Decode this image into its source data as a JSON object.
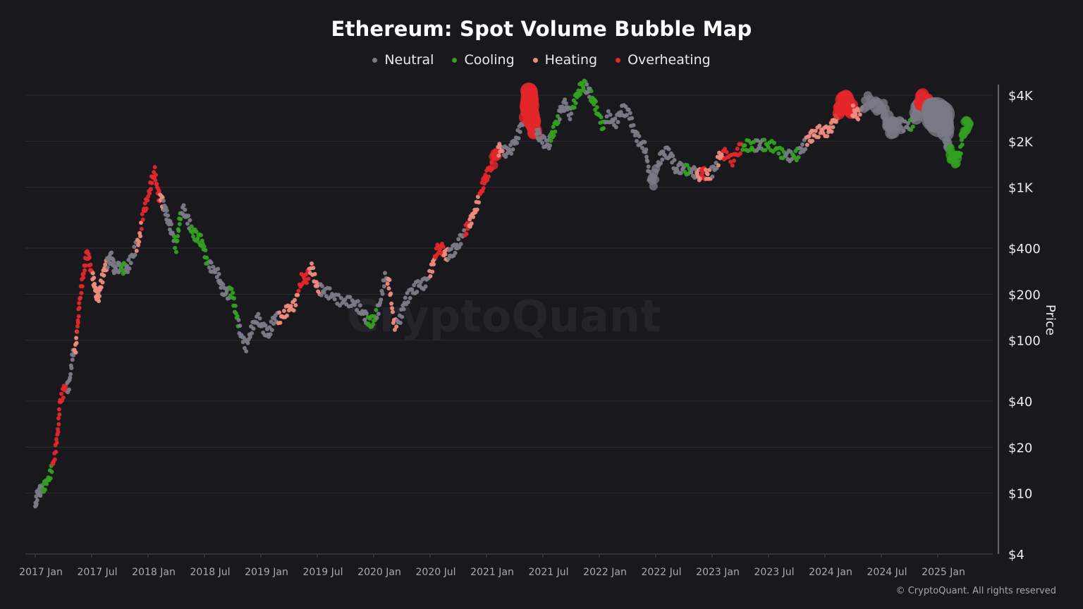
{
  "chart_data": {
    "type": "scatter",
    "title": "Ethereum: Spot Volume Bubble Map",
    "ylabel": "Price",
    "xlabel": "",
    "yscale": "log",
    "ylim": [
      4,
      6000
    ],
    "xlim": [
      2016.9,
      2025.55
    ],
    "grid": true,
    "legend_position": "top-center",
    "watermark": "CryptoQuant",
    "copyright": "© CryptoQuant. All rights reserved",
    "x_ticks": [
      {
        "label": "2017 Jan",
        "value": 2017.0
      },
      {
        "label": "2017 Jul",
        "value": 2017.5
      },
      {
        "label": "2018 Jan",
        "value": 2018.0
      },
      {
        "label": "2018 Jul",
        "value": 2018.5
      },
      {
        "label": "2019 Jan",
        "value": 2019.0
      },
      {
        "label": "2019 Jul",
        "value": 2019.5
      },
      {
        "label": "2020 Jan",
        "value": 2020.0
      },
      {
        "label": "2020 Jul",
        "value": 2020.5
      },
      {
        "label": "2021 Jan",
        "value": 2021.0
      },
      {
        "label": "2021 Jul",
        "value": 2021.5
      },
      {
        "label": "2022 Jan",
        "value": 2022.0
      },
      {
        "label": "2022 Jul",
        "value": 2022.5
      },
      {
        "label": "2023 Jan",
        "value": 2023.0
      },
      {
        "label": "2023 Jul",
        "value": 2023.5
      },
      {
        "label": "2024 Jan",
        "value": 2024.0
      },
      {
        "label": "2024 Jul",
        "value": 2024.5
      },
      {
        "label": "2025 Jan",
        "value": 2025.0
      }
    ],
    "y_ticks": [
      {
        "label": "$4K",
        "value": 4000
      },
      {
        "label": "$2K",
        "value": 2000
      },
      {
        "label": "$1K",
        "value": 1000
      },
      {
        "label": "$400",
        "value": 400
      },
      {
        "label": "$200",
        "value": 200
      },
      {
        "label": "$100",
        "value": 100
      },
      {
        "label": "$40",
        "value": 40
      },
      {
        "label": "$20",
        "value": 20
      },
      {
        "label": "$10",
        "value": 10
      },
      {
        "label": "$4",
        "value": 4
      }
    ],
    "categories": [
      {
        "key": "neutral",
        "name": "Neutral",
        "color": "#7b7a87"
      },
      {
        "key": "cooling",
        "name": "Cooling",
        "color": "#33a022"
      },
      {
        "key": "heating",
        "name": "Heating",
        "color": "#f08b80"
      },
      {
        "key": "overheating",
        "name": "Overheating",
        "color": "#e3272c"
      }
    ],
    "series": [
      [
        2017.0,
        8.2,
        "neutral",
        1
      ],
      [
        2017.02,
        10,
        "neutral",
        1
      ],
      [
        2017.05,
        10.5,
        "neutral",
        1
      ],
      [
        2017.08,
        11,
        "cooling",
        1
      ],
      [
        2017.13,
        13,
        "cooling",
        1
      ],
      [
        2017.17,
        17,
        "overheating",
        1
      ],
      [
        2017.2,
        25,
        "overheating",
        1
      ],
      [
        2017.22,
        40,
        "overheating",
        1
      ],
      [
        2017.26,
        48,
        "overheating",
        1
      ],
      [
        2017.3,
        50,
        "neutral",
        1
      ],
      [
        2017.33,
        80,
        "neutral",
        1
      ],
      [
        2017.36,
        90,
        "heating",
        1
      ],
      [
        2017.38,
        140,
        "overheating",
        1
      ],
      [
        2017.4,
        200,
        "overheating",
        1
      ],
      [
        2017.43,
        280,
        "overheating",
        1
      ],
      [
        2017.46,
        380,
        "overheating",
        1
      ],
      [
        2017.49,
        300,
        "overheating",
        1
      ],
      [
        2017.52,
        240,
        "heating",
        1
      ],
      [
        2017.54,
        200,
        "heating",
        1
      ],
      [
        2017.56,
        190,
        "heating",
        1
      ],
      [
        2017.58,
        230,
        "heating",
        1
      ],
      [
        2017.62,
        300,
        "heating",
        1
      ],
      [
        2017.65,
        330,
        "neutral",
        1
      ],
      [
        2017.68,
        350,
        "neutral",
        1
      ],
      [
        2017.7,
        290,
        "neutral",
        1
      ],
      [
        2017.74,
        300,
        "neutral",
        1
      ],
      [
        2017.78,
        295,
        "cooling",
        1
      ],
      [
        2017.82,
        300,
        "neutral",
        1
      ],
      [
        2017.87,
        370,
        "neutral",
        1
      ],
      [
        2017.92,
        450,
        "heating",
        1
      ],
      [
        2017.96,
        700,
        "overheating",
        1
      ],
      [
        2017.99,
        800,
        "overheating",
        1
      ],
      [
        2018.03,
        1100,
        "overheating",
        1
      ],
      [
        2018.06,
        1250,
        "overheating",
        1
      ],
      [
        2018.09,
        900,
        "overheating",
        1
      ],
      [
        2018.12,
        820,
        "heating",
        1
      ],
      [
        2018.15,
        720,
        "neutral",
        1
      ],
      [
        2018.18,
        600,
        "neutral",
        1
      ],
      [
        2018.21,
        520,
        "neutral",
        1
      ],
      [
        2018.25,
        400,
        "cooling",
        1
      ],
      [
        2018.28,
        620,
        "cooling",
        1
      ],
      [
        2018.31,
        720,
        "neutral",
        1
      ],
      [
        2018.35,
        620,
        "neutral",
        1
      ],
      [
        2018.4,
        500,
        "cooling",
        1
      ],
      [
        2018.44,
        470,
        "cooling",
        1
      ],
      [
        2018.48,
        440,
        "cooling",
        1
      ],
      [
        2018.52,
        330,
        "cooling",
        1
      ],
      [
        2018.56,
        300,
        "neutral",
        1
      ],
      [
        2018.62,
        270,
        "neutral",
        1
      ],
      [
        2018.65,
        220,
        "neutral",
        1
      ],
      [
        2018.7,
        200,
        "neutral",
        1
      ],
      [
        2018.74,
        210,
        "cooling",
        1
      ],
      [
        2018.78,
        150,
        "cooling",
        1
      ],
      [
        2018.82,
        110,
        "neutral",
        1
      ],
      [
        2018.87,
        90,
        "neutral",
        1
      ],
      [
        2018.92,
        120,
        "neutral",
        1
      ],
      [
        2018.97,
        140,
        "neutral",
        1
      ],
      [
        2019.02,
        120,
        "neutral",
        1
      ],
      [
        2019.07,
        110,
        "neutral",
        1
      ],
      [
        2019.12,
        140,
        "neutral",
        1
      ],
      [
        2019.18,
        140,
        "heating",
        1
      ],
      [
        2019.24,
        160,
        "heating",
        1
      ],
      [
        2019.3,
        170,
        "heating",
        1
      ],
      [
        2019.36,
        250,
        "overheating",
        1
      ],
      [
        2019.4,
        250,
        "overheating",
        1
      ],
      [
        2019.45,
        300,
        "heating",
        1
      ],
      [
        2019.5,
        220,
        "heating",
        1
      ],
      [
        2019.55,
        210,
        "neutral",
        1
      ],
      [
        2019.62,
        200,
        "neutral",
        1
      ],
      [
        2019.7,
        180,
        "neutral",
        1
      ],
      [
        2019.78,
        180,
        "neutral",
        1
      ],
      [
        2019.85,
        170,
        "neutral",
        1
      ],
      [
        2019.92,
        145,
        "neutral",
        1
      ],
      [
        2019.96,
        130,
        "cooling",
        1
      ],
      [
        2020.0,
        135,
        "cooling",
        1
      ],
      [
        2020.05,
        165,
        "neutral",
        1
      ],
      [
        2020.1,
        260,
        "neutral",
        1
      ],
      [
        2020.14,
        230,
        "heating",
        1
      ],
      [
        2020.18,
        125,
        "heating",
        1
      ],
      [
        2020.23,
        135,
        "neutral",
        1
      ],
      [
        2020.28,
        180,
        "neutral",
        1
      ],
      [
        2020.34,
        210,
        "neutral",
        1
      ],
      [
        2020.4,
        230,
        "neutral",
        1
      ],
      [
        2020.46,
        235,
        "neutral",
        1
      ],
      [
        2020.52,
        300,
        "heating",
        1
      ],
      [
        2020.56,
        390,
        "overheating",
        1
      ],
      [
        2020.6,
        400,
        "overheating",
        1
      ],
      [
        2020.64,
        360,
        "heating",
        1
      ],
      [
        2020.68,
        370,
        "neutral",
        1
      ],
      [
        2020.73,
        400,
        "neutral",
        1
      ],
      [
        2020.78,
        470,
        "neutral",
        1
      ],
      [
        2020.83,
        550,
        "overheating",
        1
      ],
      [
        2020.86,
        600,
        "heating",
        1
      ],
      [
        2020.91,
        740,
        "heating",
        1
      ],
      [
        2020.96,
        1000,
        "overheating",
        1
      ],
      [
        2020.99,
        1150,
        "overheating",
        1
      ],
      [
        2021.03,
        1300,
        "overheating",
        1
      ],
      [
        2021.08,
        1600,
        "overheating",
        2
      ],
      [
        2021.12,
        1800,
        "heating",
        1
      ],
      [
        2021.17,
        1700,
        "neutral",
        1
      ],
      [
        2021.22,
        1800,
        "neutral",
        1
      ],
      [
        2021.27,
        2100,
        "neutral",
        1
      ],
      [
        2021.32,
        2700,
        "neutral",
        1
      ],
      [
        2021.36,
        3400,
        "overheating",
        3
      ],
      [
        2021.38,
        4200,
        "overheating",
        4
      ],
      [
        2021.4,
        2800,
        "overheating",
        4
      ],
      [
        2021.42,
        2400,
        "overheating",
        3
      ],
      [
        2021.46,
        2200,
        "neutral",
        1
      ],
      [
        2021.5,
        2000,
        "neutral",
        1
      ],
      [
        2021.55,
        1900,
        "neutral",
        1
      ],
      [
        2021.58,
        2200,
        "cooling",
        1
      ],
      [
        2021.62,
        2600,
        "cooling",
        1
      ],
      [
        2021.66,
        3200,
        "neutral",
        1
      ],
      [
        2021.7,
        3500,
        "neutral",
        1
      ],
      [
        2021.74,
        3000,
        "neutral",
        1
      ],
      [
        2021.78,
        3600,
        "cooling",
        1
      ],
      [
        2021.82,
        4300,
        "cooling",
        1
      ],
      [
        2021.86,
        4700,
        "cooling",
        1
      ],
      [
        2021.9,
        4300,
        "neutral",
        1
      ],
      [
        2021.94,
        3800,
        "cooling",
        1
      ],
      [
        2021.98,
        3200,
        "cooling",
        1
      ],
      [
        2022.03,
        2500,
        "cooling",
        1
      ],
      [
        2022.08,
        2900,
        "neutral",
        1
      ],
      [
        2022.14,
        2600,
        "neutral",
        1
      ],
      [
        2022.2,
        3200,
        "neutral",
        1
      ],
      [
        2022.26,
        3100,
        "neutral",
        1
      ],
      [
        2022.31,
        2300,
        "neutral",
        1
      ],
      [
        2022.36,
        1950,
        "neutral",
        1
      ],
      [
        2022.41,
        1800,
        "neutral",
        1
      ],
      [
        2022.44,
        1200,
        "neutral",
        1
      ],
      [
        2022.48,
        1100,
        "neutral",
        2
      ],
      [
        2022.53,
        1500,
        "neutral",
        1
      ],
      [
        2022.58,
        1700,
        "neutral",
        1
      ],
      [
        2022.63,
        1650,
        "neutral",
        1
      ],
      [
        2022.68,
        1300,
        "neutral",
        1
      ],
      [
        2022.73,
        1350,
        "neutral",
        1
      ],
      [
        2022.78,
        1300,
        "cooling",
        1
      ],
      [
        2022.84,
        1250,
        "neutral",
        1
      ],
      [
        2022.88,
        1200,
        "heating",
        1
      ],
      [
        2022.92,
        1250,
        "overheating",
        1
      ],
      [
        2022.96,
        1180,
        "heating",
        1
      ],
      [
        2023.02,
        1300,
        "neutral",
        1
      ],
      [
        2023.07,
        1600,
        "heating",
        1
      ],
      [
        2023.12,
        1650,
        "overheating",
        1
      ],
      [
        2023.18,
        1500,
        "overheating",
        1
      ],
      [
        2023.23,
        1750,
        "overheating",
        1
      ],
      [
        2023.3,
        1880,
        "cooling",
        1
      ],
      [
        2023.36,
        1850,
        "cooling",
        1
      ],
      [
        2023.42,
        1900,
        "neutral",
        1
      ],
      [
        2023.48,
        1880,
        "cooling",
        1
      ],
      [
        2023.55,
        1850,
        "cooling",
        1
      ],
      [
        2023.62,
        1650,
        "cooling",
        1
      ],
      [
        2023.68,
        1600,
        "neutral",
        1
      ],
      [
        2023.74,
        1600,
        "cooling",
        1
      ],
      [
        2023.8,
        1800,
        "neutral",
        1
      ],
      [
        2023.86,
        2100,
        "heating",
        1
      ],
      [
        2023.9,
        2200,
        "heating",
        1
      ],
      [
        2023.96,
        2350,
        "heating",
        1
      ],
      [
        2024.02,
        2300,
        "heating",
        1
      ],
      [
        2024.06,
        2500,
        "heating",
        1
      ],
      [
        2024.1,
        2900,
        "heating",
        1
      ],
      [
        2024.14,
        3400,
        "overheating",
        3
      ],
      [
        2024.18,
        3800,
        "overheating",
        3
      ],
      [
        2024.22,
        3300,
        "overheating",
        3
      ],
      [
        2024.26,
        3100,
        "heating",
        1
      ],
      [
        2024.3,
        3000,
        "heating",
        1
      ],
      [
        2024.38,
        3700,
        "neutral",
        2
      ],
      [
        2024.45,
        3400,
        "neutral",
        2
      ],
      [
        2024.52,
        3300,
        "neutral",
        2
      ],
      [
        2024.58,
        2400,
        "neutral",
        3
      ],
      [
        2024.64,
        2600,
        "neutral",
        2
      ],
      [
        2024.72,
        2500,
        "neutral",
        1
      ],
      [
        2024.78,
        2600,
        "cooling",
        1
      ],
      [
        2024.82,
        3200,
        "neutral",
        3
      ],
      [
        2024.86,
        3800,
        "overheating",
        3
      ],
      [
        2024.9,
        3500,
        "overheating",
        3
      ],
      [
        2024.95,
        3200,
        "neutral",
        4
      ],
      [
        2025.0,
        2900,
        "neutral",
        5
      ],
      [
        2025.06,
        2600,
        "neutral",
        4
      ],
      [
        2025.09,
        1900,
        "neutral",
        2
      ],
      [
        2025.12,
        1600,
        "cooling",
        2
      ],
      [
        2025.16,
        1500,
        "cooling",
        2
      ],
      [
        2025.2,
        1700,
        "cooling",
        1
      ],
      [
        2025.24,
        2500,
        "cooling",
        2
      ],
      [
        2025.28,
        2600,
        "cooling",
        2
      ]
    ]
  }
}
